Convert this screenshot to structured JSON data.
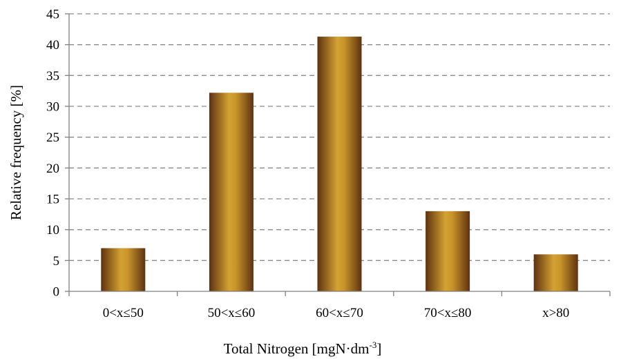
{
  "chart_data": {
    "type": "bar",
    "title": "",
    "xlabel": "Total Nitrogen [mgN·dm",
    "xlabel_superscript": "-3",
    "xlabel_suffix": "]",
    "ylabel": "Relative frequency [%]",
    "categories": [
      "0<x≤50",
      "50<x≤60",
      "60<x≤70",
      "70<x≤80",
      "x>80"
    ],
    "values": [
      7,
      32.2,
      41.3,
      13,
      6
    ],
    "ylim": [
      0,
      45
    ],
    "yticks": [
      0,
      5,
      10,
      15,
      20,
      25,
      30,
      35,
      40,
      45
    ],
    "grid": true,
    "legend": "none",
    "colors": {
      "bar_edge": "#6b3a12",
      "bar_center": "#d4a233",
      "grid": "#8a8a8a",
      "axis": "#808080"
    }
  }
}
